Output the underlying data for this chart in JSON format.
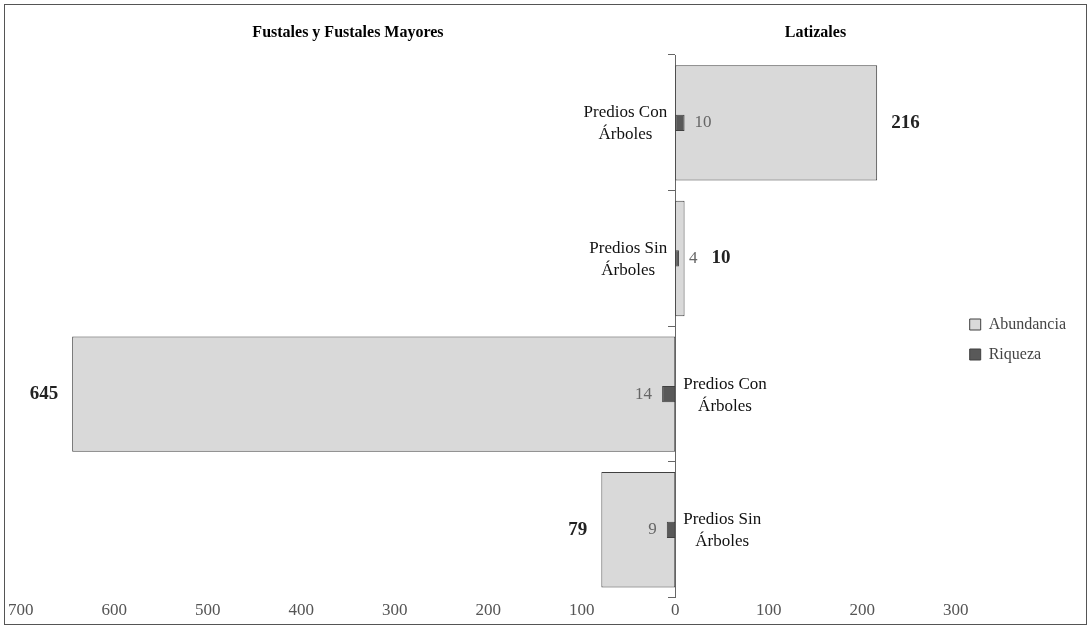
{
  "chart_data": {
    "type": "bar",
    "orientation": "horizontal",
    "categories": [
      "Predios Con Árboles",
      "Predios Sin Árboles",
      "Predios Con Árboles",
      "Predios Sin Árboles"
    ],
    "series": [
      {
        "name": "Abundancia",
        "color": "#d9d9d9",
        "values": [
          216,
          10,
          645,
          79
        ],
        "base": [
          0,
          0,
          -645,
          -79
        ],
        "value_labels": [
          "216",
          "10",
          "645",
          "79"
        ]
      },
      {
        "name": "Riqueza",
        "color": "#595959",
        "values": [
          10,
          4,
          14,
          9
        ],
        "base": [
          0,
          0,
          -14,
          -9
        ],
        "value_labels": [
          "10",
          "4",
          "14",
          "9"
        ]
      }
    ],
    "xlim": [
      -700,
      300
    ],
    "xticks": [
      {
        "value": -700,
        "label": "700"
      },
      {
        "value": -600,
        "label": "600"
      },
      {
        "value": -500,
        "label": "500"
      },
      {
        "value": -400,
        "label": "400"
      },
      {
        "value": -300,
        "label": "300"
      },
      {
        "value": -200,
        "label": "200"
      },
      {
        "value": -100,
        "label": "100"
      },
      0,
      100,
      200,
      300
    ],
    "annotations": [
      "Fustales y Fustales Mayores",
      "Latizales"
    ],
    "legend": "right",
    "grid": false
  }
}
